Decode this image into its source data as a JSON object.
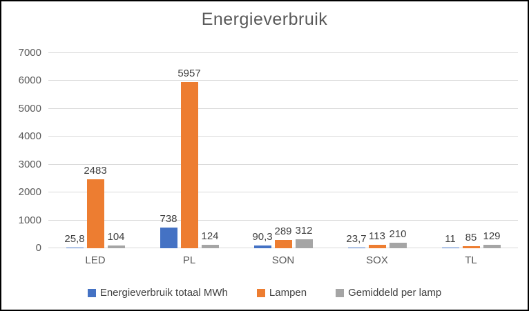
{
  "chart": {
    "title": "Energieverbruik"
  },
  "chart_data": {
    "type": "bar",
    "title": "Energieverbruik",
    "xlabel": "",
    "ylabel": "",
    "categories": [
      "LED",
      "PL",
      "SON",
      "SOX",
      "TL"
    ],
    "series": [
      {
        "name": "Energieverbruik totaal MWh",
        "color": "#4472C4",
        "values": [
          25.8,
          738,
          90.3,
          23.7,
          11
        ],
        "labels": [
          "25,8",
          "738",
          "90,3",
          "23,7",
          "11"
        ]
      },
      {
        "name": "Lampen",
        "color": "#ED7D31",
        "values": [
          2483,
          5957,
          289,
          113,
          85
        ],
        "labels": [
          "2483",
          "5957",
          "289",
          "113",
          "85"
        ]
      },
      {
        "name": "Gemiddeld per lamp",
        "color": "#A5A5A5",
        "values": [
          104,
          124,
          312,
          210,
          129
        ],
        "labels": [
          "104",
          "124",
          "312",
          "210",
          "129"
        ]
      }
    ],
    "ylim": [
      0,
      7000
    ],
    "yticks": [
      0,
      1000,
      2000,
      3000,
      4000,
      5000,
      6000,
      7000
    ],
    "grid": true,
    "legend_position": "bottom",
    "styles": {
      "gridline_color": "#D9D9D9",
      "axis_text_color": "#595959",
      "data_label_color": "#404040",
      "title_color": "#595959",
      "frame_border_color": "#000000",
      "background": "#FFFFFF"
    }
  }
}
